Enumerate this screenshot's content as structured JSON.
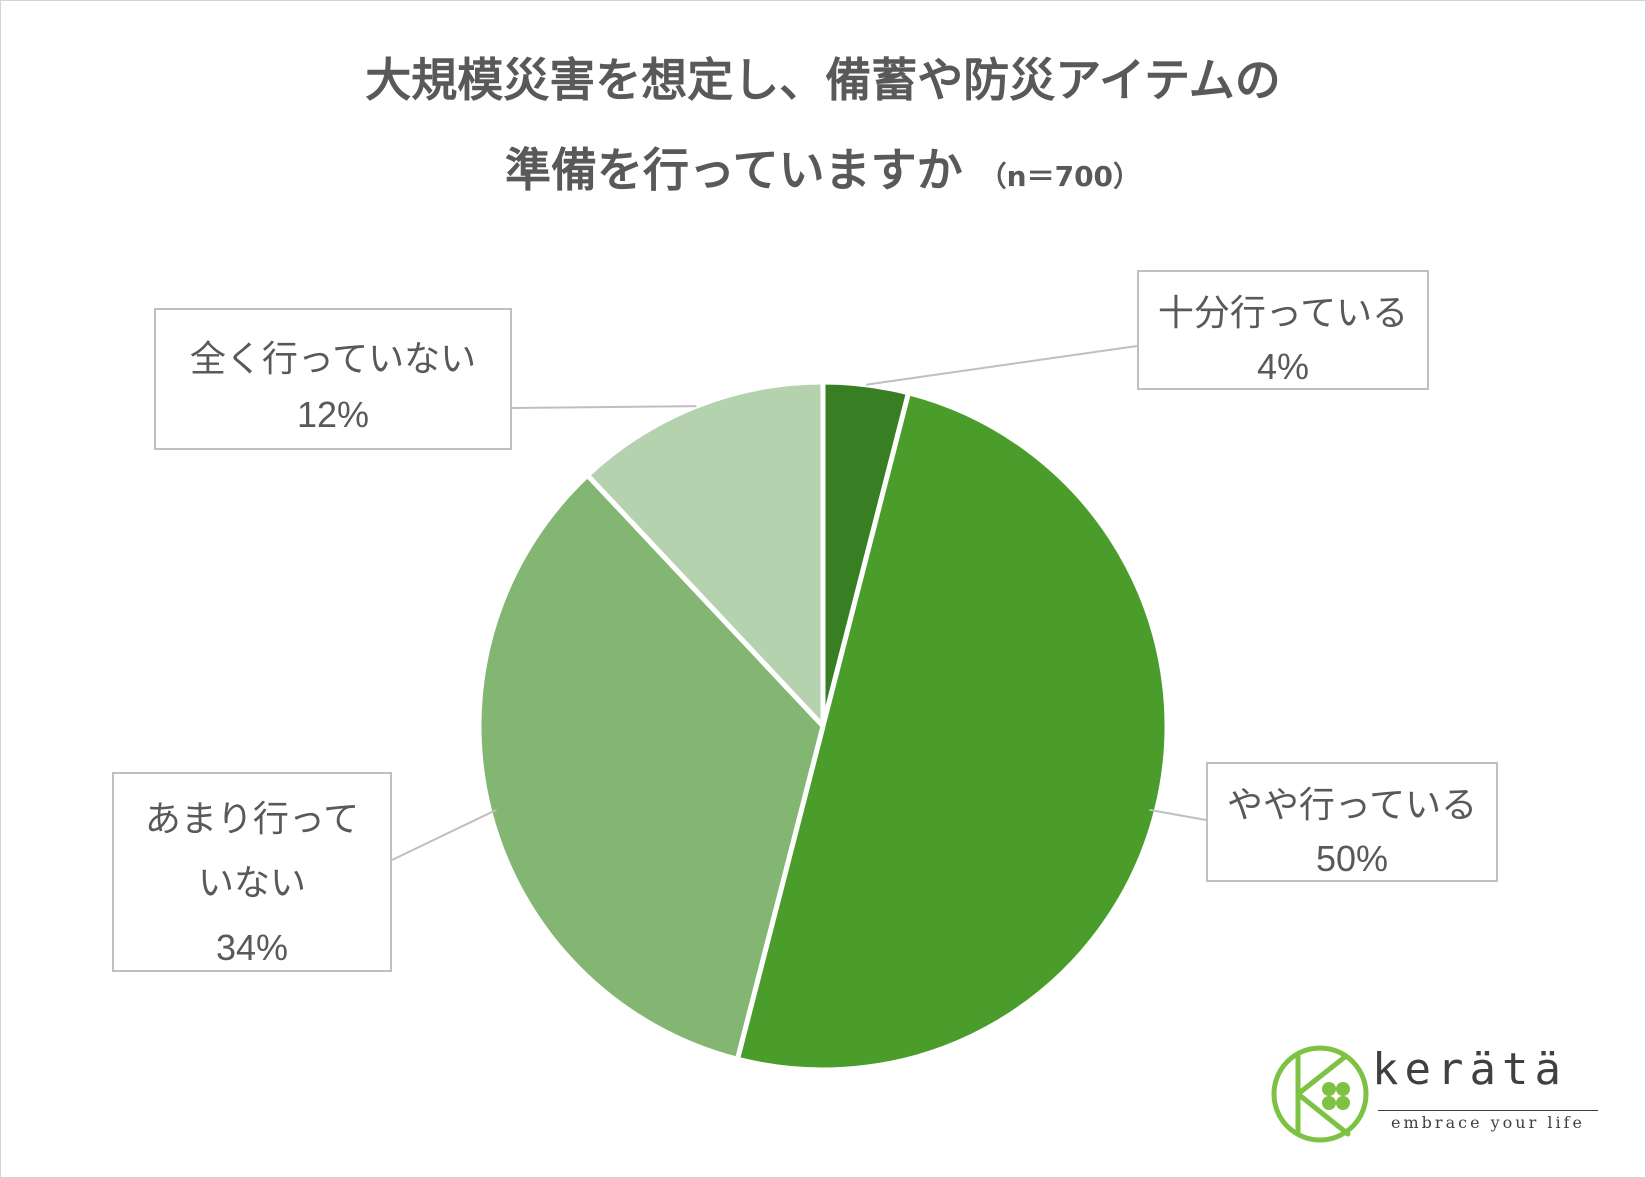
{
  "title": {
    "line1": "大規模災害を想定し、備蓄や防災アイテムの",
    "line2": "準備を行っていますか",
    "sample": "（n＝700）"
  },
  "chart_data": {
    "type": "pie",
    "slices": [
      {
        "label": "十分行っている",
        "value": 4,
        "display": "4%",
        "color": "#387f23"
      },
      {
        "label": "やや行っている",
        "value": 50,
        "display": "50%",
        "color": "#4a9c2b"
      },
      {
        "label": "あまり行っていない",
        "value": 34,
        "display": "34%",
        "color": "#82b672"
      },
      {
        "label": "全く行っていない",
        "value": 12,
        "display": "12%",
        "color": "#b5d2af"
      }
    ],
    "legend": "callouts",
    "start": "12 o'clock, clockwise"
  },
  "logo": {
    "name": "kerätä",
    "tagline": "embrace your life",
    "icon": "clover-k-logo-icon",
    "color": "#7dc242"
  }
}
